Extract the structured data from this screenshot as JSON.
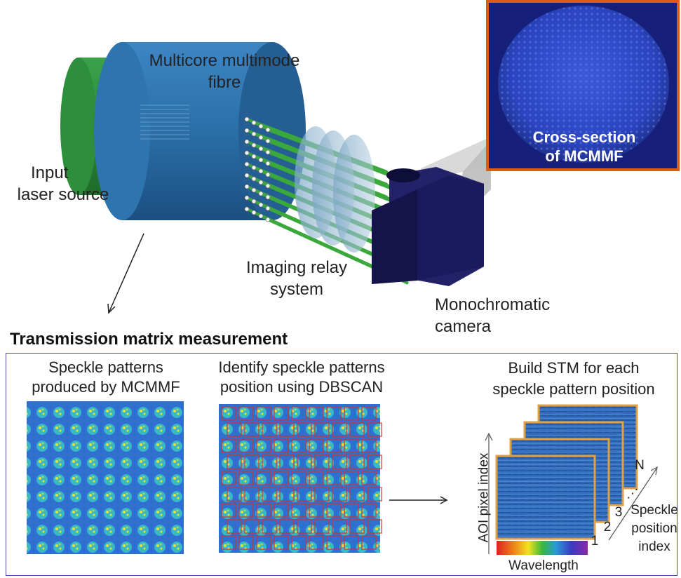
{
  "labels": {
    "fibre": [
      "Multicore multimode",
      "fibre"
    ],
    "laser": [
      "Input",
      "laser source"
    ],
    "relay": [
      "Imaging relay",
      "system"
    ],
    "camera": [
      "Monochromatic",
      "camera"
    ],
    "cross_section": [
      "Cross-section",
      "of MCMMF"
    ]
  },
  "section_title": "Transmission matrix measurement",
  "panels": {
    "speckle": [
      "Speckle patterns",
      "produced by MCMMF"
    ],
    "dbscan": [
      "Identify speckle patterns",
      "position using DBSCAN"
    ],
    "stm": [
      "Build STM for each",
      "speckle pattern position"
    ]
  },
  "stm_stack": {
    "y_axis": "AOI pixel index",
    "x_axis": "Wavelength",
    "index_labels": [
      "1",
      "2",
      "3",
      "N"
    ],
    "position_axis": [
      "Speckle",
      "position",
      "index"
    ]
  },
  "colors": {
    "laser": "#2e8b3c",
    "fibre": "#2a6fa8",
    "camera": "#1b1a5c",
    "cross_section_border": "#e05a1a",
    "stm_border": "#e0a040",
    "box_red": "#d8322a"
  }
}
